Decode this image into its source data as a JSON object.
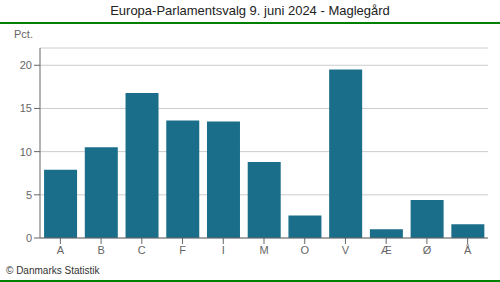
{
  "chart_data": {
    "type": "bar",
    "title": "Europa-Parlamentsvalg 9. juni 2024 - Maglegård",
    "categories": [
      "A",
      "B",
      "C",
      "F",
      "I",
      "M",
      "O",
      "V",
      "Æ",
      "Ø",
      "Å"
    ],
    "values": [
      7.9,
      10.5,
      16.8,
      13.6,
      13.5,
      8.8,
      2.6,
      19.5,
      1.0,
      4.4,
      1.6
    ],
    "color": "#1a6e8a",
    "ylabel": "Pct.",
    "ylim": [
      0,
      22
    ],
    "yticks": [
      0,
      5,
      10,
      15,
      20
    ],
    "grid": true,
    "footer": "© Danmarks Statistik"
  }
}
